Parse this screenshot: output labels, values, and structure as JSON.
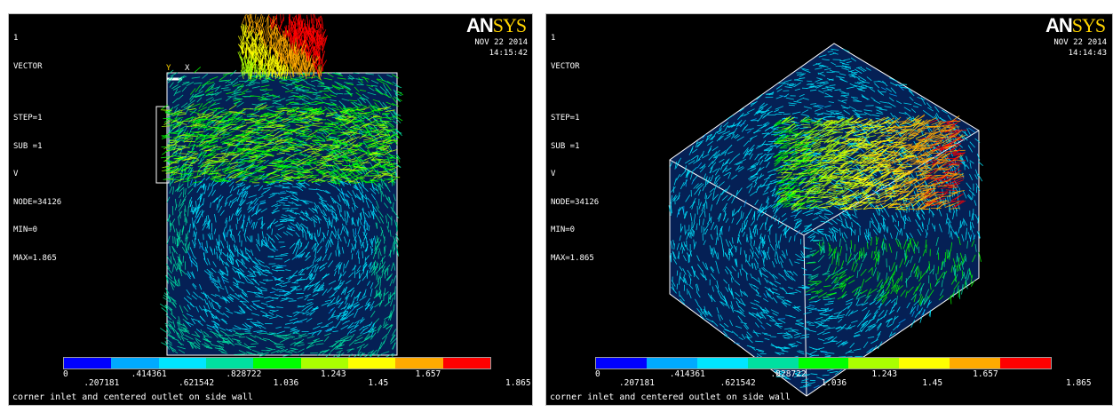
{
  "panels": [
    {
      "window_number": "1",
      "info": {
        "plot_type": "VECTOR",
        "step": "STEP=1",
        "sub": "SUB =1",
        "quantity": "V",
        "node": "NODE=34126",
        "min": "MIN=0",
        "max": "MAX=1.865"
      },
      "logo": {
        "brand_a": "AN",
        "brand_b": "SYS"
      },
      "date": "NOV 22 2014",
      "time": "14:15:42",
      "axis_y": "Y",
      "axis_x": "X",
      "legend_labels": [
        "0",
        ".207181",
        ".414361",
        ".621542",
        ".828722",
        "1.036",
        "1.243",
        "1.45",
        "1.657",
        "1.865"
      ],
      "caption": "corner inlet and centered outlet on side wall"
    },
    {
      "window_number": "1",
      "info": {
        "plot_type": "VECTOR",
        "step": "STEP=1",
        "sub": "SUB =1",
        "quantity": "V",
        "node": "NODE=34126",
        "min": "MIN=0",
        "max": "MAX=1.865"
      },
      "logo": {
        "brand_a": "AN",
        "brand_b": "SYS"
      },
      "date": "NOV 22 2014",
      "time": "14:14:43",
      "legend_labels": [
        "0",
        ".207181",
        ".414361",
        ".621542",
        ".828722",
        "1.036",
        "1.243",
        "1.45",
        "1.657",
        "1.865"
      ],
      "caption": "corner inlet and centered outlet on side wall"
    }
  ],
  "legend_colors": [
    "#0000ff",
    "#00aaff",
    "#00e5ff",
    "#00e0a0",
    "#00ff00",
    "#aaff00",
    "#ffff00",
    "#ffaa00",
    "#ff0000"
  ]
}
